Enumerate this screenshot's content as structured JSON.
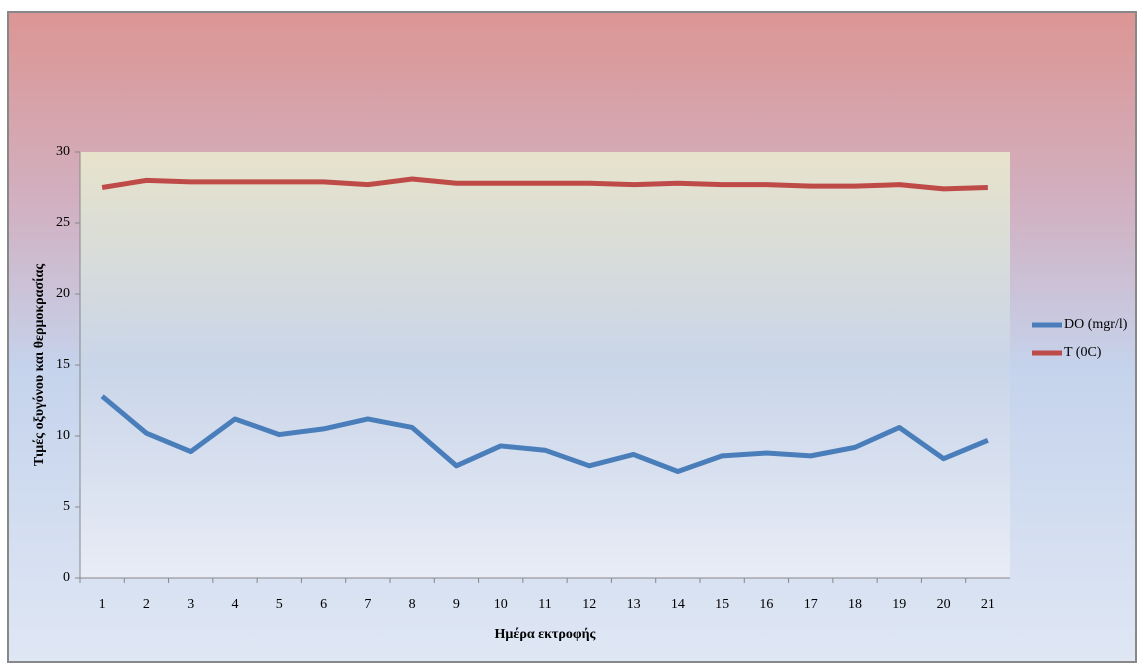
{
  "chart_data": {
    "type": "line",
    "x_label": "Ημέρα εκτροφής",
    "y_label": "Τιμές οξυγόνου και θερμοκρασίας",
    "categories": [
      "1",
      "2",
      "3",
      "4",
      "5",
      "6",
      "7",
      "8",
      "9",
      "10",
      "11",
      "12",
      "13",
      "14",
      "15",
      "16",
      "17",
      "18",
      "19",
      "20",
      "21"
    ],
    "series": [
      {
        "name": "DO (mgr/l)",
        "color": "#4a7ebb",
        "values": [
          12.8,
          10.2,
          8.9,
          11.2,
          10.1,
          10.5,
          11.2,
          10.6,
          7.9,
          9.3,
          9.0,
          7.9,
          8.7,
          7.5,
          8.6,
          8.8,
          8.6,
          9.2,
          10.6,
          8.4,
          9.7
        ]
      },
      {
        "name": "T (0C)",
        "color": "#be4b48",
        "values": [
          27.5,
          28.0,
          27.9,
          27.9,
          27.9,
          27.9,
          27.7,
          28.1,
          27.8,
          27.8,
          27.8,
          27.8,
          27.7,
          27.8,
          27.7,
          27.7,
          27.6,
          27.6,
          27.7,
          27.4,
          27.5
        ]
      }
    ],
    "ylim": [
      0,
      30
    ],
    "yticks": [
      0,
      5,
      10,
      15,
      20,
      25,
      30
    ],
    "grid": false,
    "legend": "right"
  }
}
